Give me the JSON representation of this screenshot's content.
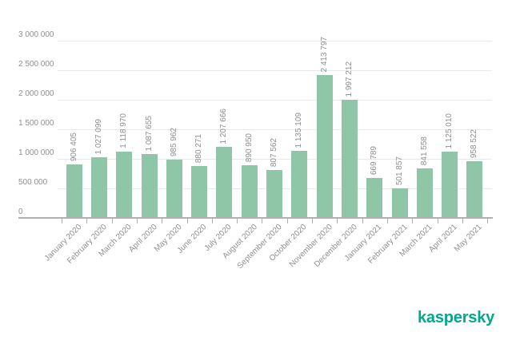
{
  "chart_data": {
    "type": "bar",
    "title": "",
    "categories": [
      "January 2020",
      "February 2020",
      "March 2020",
      "April 2020",
      "May 2020",
      "June 2020",
      "July 2020",
      "August 2020",
      "September 2020",
      "October 2020",
      "November 2020",
      "December 2020",
      "January 2021",
      "February 2021",
      "March 2021",
      "April 2021",
      "May 2021"
    ],
    "values": [
      906405,
      1027099,
      1118970,
      1087655,
      985962,
      880271,
      1207666,
      890950,
      807562,
      1135109,
      2413797,
      1997212,
      669789,
      501857,
      841558,
      1125010,
      958522
    ],
    "value_labels": [
      "906 405",
      "1 027 099",
      "1 118 970",
      "1 087 655",
      "985 962",
      "880 271",
      "1 207 666",
      "890 950",
      "807 562",
      "1 135 109",
      "2 413 797",
      "1 997 212",
      "669 789",
      "501 857",
      "841 558",
      "1 125 010",
      "958 522"
    ],
    "y_ticks": [
      "3 000 000",
      "2 500 000",
      "2 000 000",
      "1 500 000",
      "1 000 000",
      "500 000",
      "0"
    ],
    "ylim": [
      0,
      3000000
    ],
    "xlabel": "",
    "ylabel": "",
    "grid": true,
    "legend_position": "none",
    "bar_color": "#8fc6a8",
    "text_color": "#8e8e8e",
    "grid_color": "#e9e9e9",
    "axis_color": "#b0b0b0"
  },
  "footer": {
    "brand": "kaspersky",
    "brand_color": "#00a88e"
  }
}
